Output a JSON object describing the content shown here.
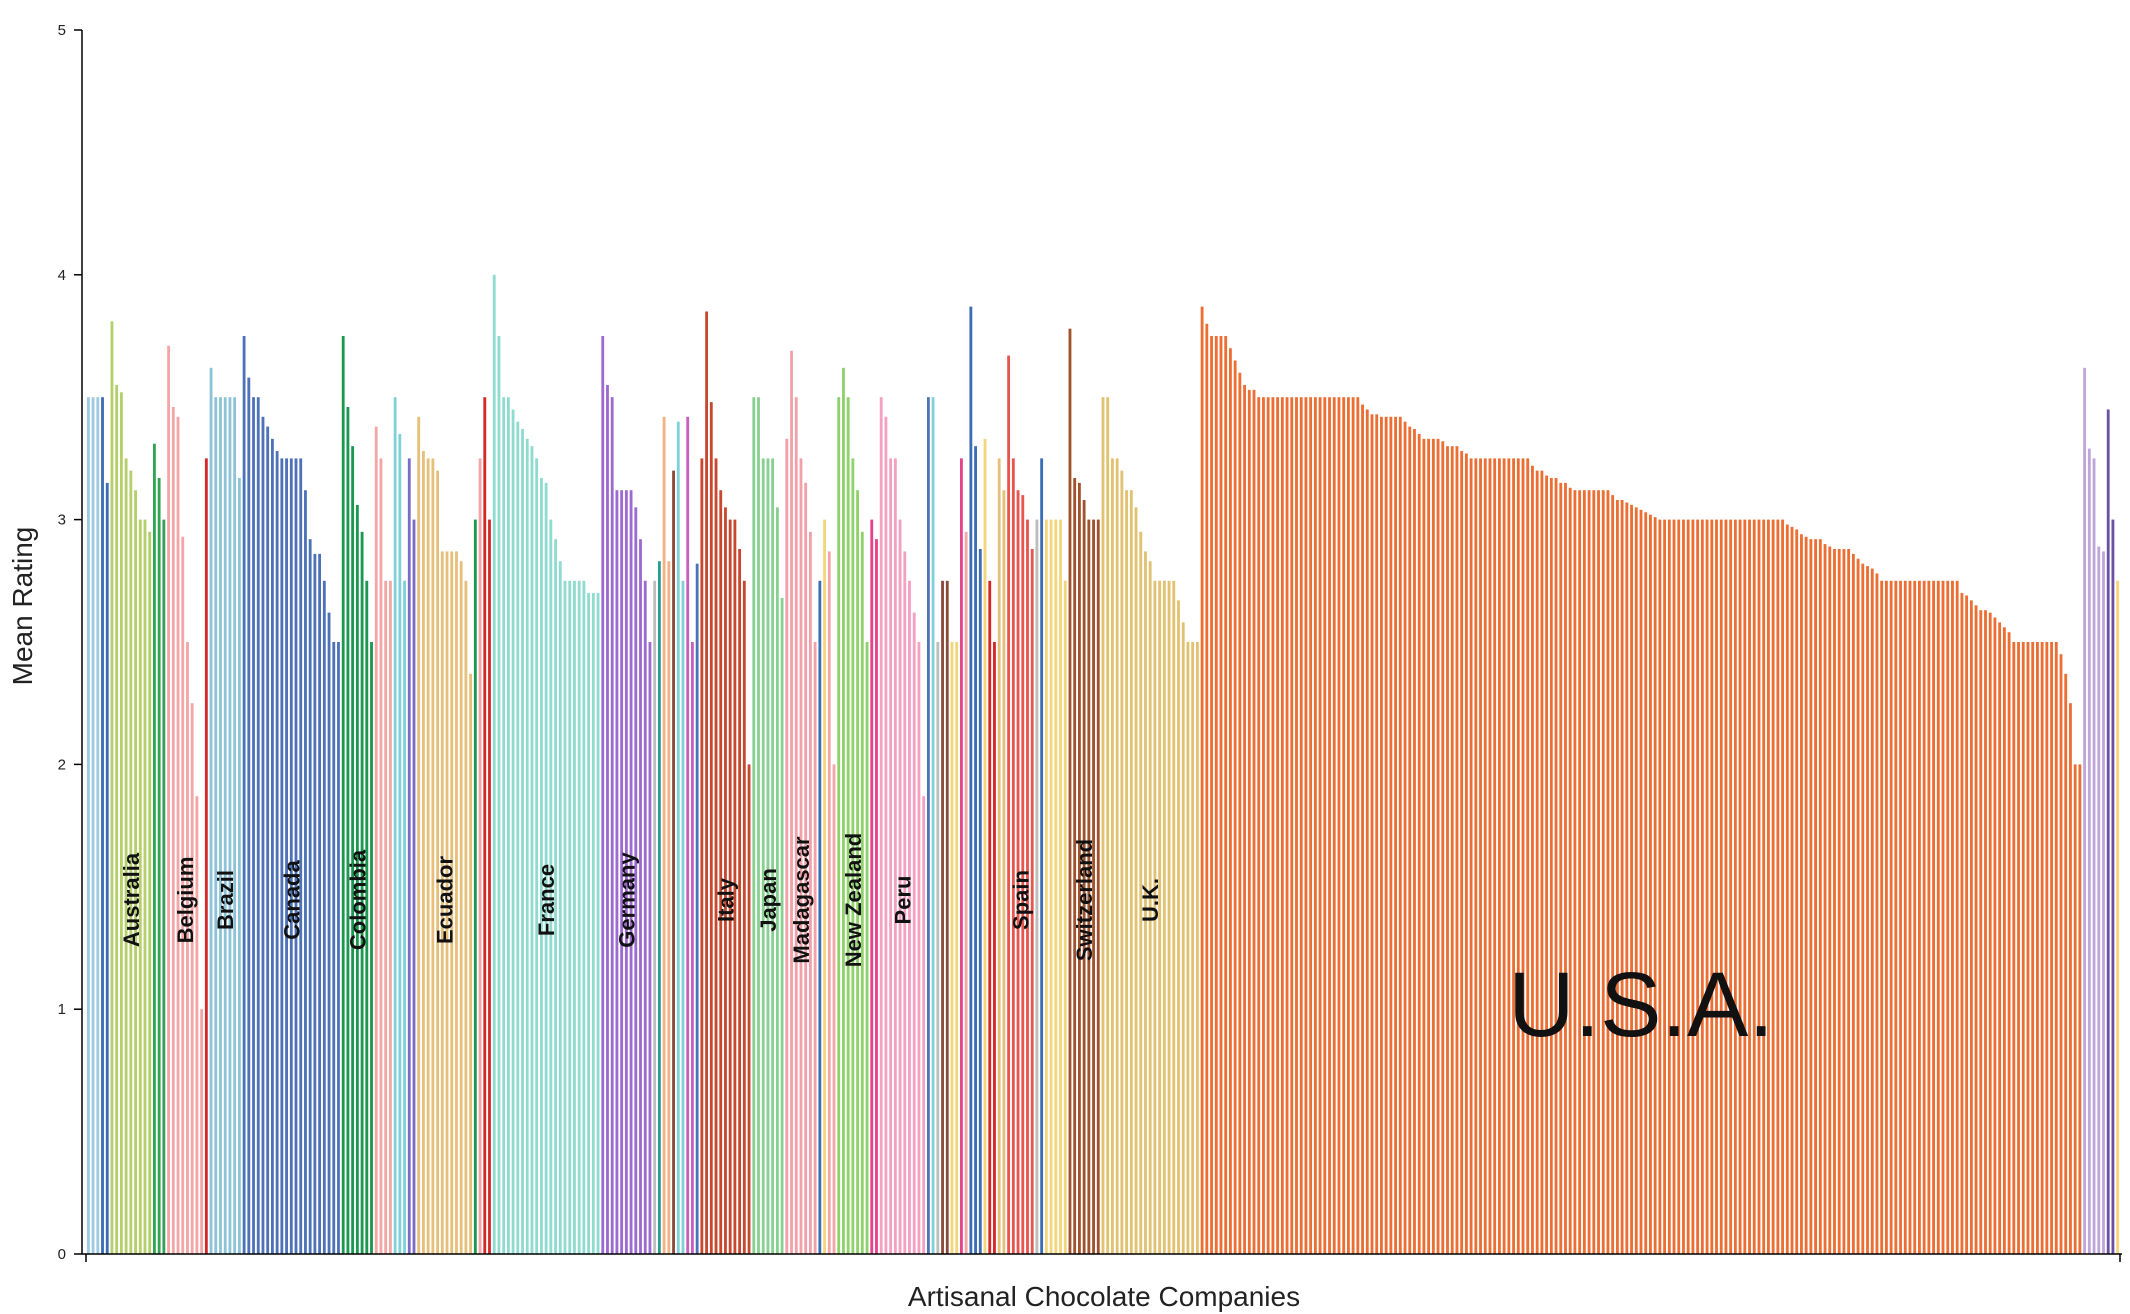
{
  "chart_data": {
    "type": "bar",
    "title": "",
    "xlabel": "Artisanal Chocolate Companies",
    "ylabel": "Mean Rating",
    "ylim": [
      0,
      5
    ],
    "yticks": [
      "0",
      "1",
      "2",
      "3",
      "4",
      "5"
    ],
    "grid": false,
    "legend": "none",
    "series": [
      {
        "country": "",
        "color": "#9ecae1",
        "values": [
          3.5,
          3.5,
          3.5
        ]
      },
      {
        "country": "",
        "color": "#3a6db5",
        "values": [
          3.5,
          3.15
        ]
      },
      {
        "country": "Australia",
        "color": "#b5cf6b",
        "values": [
          3.81,
          3.55,
          3.52,
          3.25,
          3.2,
          3.12,
          3.0,
          3.0,
          2.95
        ]
      },
      {
        "country": "",
        "color": "#31a354",
        "values": [
          3.31,
          3.17,
          3.0
        ]
      },
      {
        "country": "Belgium",
        "color": "#f4a5a5",
        "values": [
          3.71,
          3.46,
          3.42,
          2.93,
          2.5,
          2.25,
          1.87,
          1.0
        ]
      },
      {
        "country": "",
        "color": "#d62728",
        "values": [
          3.25
        ]
      },
      {
        "country": "Brazil",
        "color": "#8dc3d8",
        "values": [
          3.62,
          3.5,
          3.5,
          3.5,
          3.5,
          3.5,
          3.17
        ]
      },
      {
        "country": "Canada",
        "color": "#4e72b8",
        "values": [
          3.75,
          3.58,
          3.5,
          3.5,
          3.42,
          3.38,
          3.33,
          3.28,
          3.25,
          3.25,
          3.25,
          3.25,
          3.25,
          3.12,
          2.92,
          2.86,
          2.86,
          2.75,
          2.62,
          2.5,
          2.5
        ]
      },
      {
        "country": "Colombia",
        "color": "#1a9850",
        "values": [
          3.75,
          3.46,
          3.3,
          3.06,
          2.95,
          2.75,
          2.5
        ]
      },
      {
        "country": "",
        "color": "#f4a5a5",
        "values": [
          3.38,
          3.25,
          2.75,
          2.75
        ]
      },
      {
        "country": "",
        "color": "#7fd1d8",
        "values": [
          3.5,
          3.35,
          2.75
        ]
      },
      {
        "country": "",
        "color": "#7b6cc9",
        "values": [
          3.25,
          3.0
        ]
      },
      {
        "country": "Ecuador",
        "color": "#e6c07b",
        "values": [
          3.42,
          3.28,
          3.25,
          3.25,
          3.2,
          2.87,
          2.87,
          2.87,
          2.87,
          2.83,
          2.75,
          2.37
        ]
      },
      {
        "country": "",
        "color": "#1a9850",
        "values": [
          3.0
        ]
      },
      {
        "country": "",
        "color": "#f4a5a5",
        "values": [
          3.25
        ]
      },
      {
        "country": "",
        "color": "#d62728",
        "values": [
          3.5,
          3.0
        ]
      },
      {
        "country": "France",
        "color": "#8fdbd0",
        "values": [
          4.0,
          3.75,
          3.5,
          3.5,
          3.45,
          3.4,
          3.37,
          3.33,
          3.3,
          3.25,
          3.17,
          3.15,
          3.0,
          2.92,
          2.83,
          2.75,
          2.75,
          2.75,
          2.75,
          2.75,
          2.7,
          2.7,
          2.7
        ]
      },
      {
        "country": "Germany",
        "color": "#9c6ad0",
        "values": [
          3.75,
          3.55,
          3.5,
          3.12,
          3.12,
          3.12,
          3.12,
          3.05,
          2.92,
          2.75,
          2.5
        ]
      },
      {
        "country": "",
        "color": "#bdbdbd",
        "values": [
          2.75
        ]
      },
      {
        "country": "",
        "color": "#2a9d8f",
        "values": [
          2.83
        ]
      },
      {
        "country": "",
        "color": "#f4b183",
        "values": [
          3.42,
          2.83
        ]
      },
      {
        "country": "",
        "color": "#8c4a3a",
        "values": [
          3.2
        ]
      },
      {
        "country": "",
        "color": "#7fd1d8",
        "values": [
          3.4,
          2.75
        ]
      },
      {
        "country": "",
        "color": "#c85fbf",
        "values": [
          3.42,
          2.5
        ]
      },
      {
        "country": "",
        "color": "#4e72b8",
        "values": [
          2.82
        ]
      },
      {
        "country": "Italy",
        "color": "#c8482f",
        "values": [
          3.25,
          3.85,
          3.48,
          3.25,
          3.12,
          3.05,
          3.0,
          3.0,
          2.88,
          2.75,
          2.0
        ]
      },
      {
        "country": "Japan",
        "color": "#86d18f",
        "values": [
          3.5,
          3.5,
          3.25,
          3.25,
          3.25,
          3.05,
          2.68
        ]
      },
      {
        "country": "Madagascar",
        "color": "#f2a1a8",
        "values": [
          3.33,
          3.69,
          3.5,
          3.25,
          3.15,
          2.95,
          2.5
        ]
      },
      {
        "country": "",
        "color": "#3a6db5",
        "values": [
          2.75
        ]
      },
      {
        "country": "",
        "color": "#f4d67a",
        "values": [
          3.0
        ]
      },
      {
        "country": "",
        "color": "#f4a5a5",
        "values": [
          2.87,
          2.0
        ]
      },
      {
        "country": "New Zealand",
        "color": "#8fd16a",
        "values": [
          3.5,
          3.62,
          3.5,
          3.25,
          3.12,
          2.95,
          2.5
        ]
      },
      {
        "country": "",
        "color": "#e8408a",
        "values": [
          3.0,
          2.92
        ]
      },
      {
        "country": "Peru",
        "color": "#f4a0c0",
        "values": [
          3.5,
          3.42,
          3.25,
          3.25,
          3.0,
          2.87,
          2.75,
          2.62,
          2.5,
          1.87
        ]
      },
      {
        "country": "",
        "color": "#4e72b8",
        "values": [
          3.5
        ]
      },
      {
        "country": "",
        "color": "#7fd1d8",
        "values": [
          3.5
        ]
      },
      {
        "country": "",
        "color": "#bdbdbd",
        "values": [
          2.5
        ]
      },
      {
        "country": "",
        "color": "#8c4a3a",
        "values": [
          2.75,
          2.75
        ]
      },
      {
        "country": "",
        "color": "#f4d67a",
        "values": [
          2.5,
          2.5
        ]
      },
      {
        "country": "",
        "color": "#e8408a",
        "values": [
          3.25
        ]
      },
      {
        "country": "",
        "color": "#f4a5a5",
        "values": [
          2.95
        ]
      },
      {
        "country": "",
        "color": "#3a6db5",
        "values": [
          3.87,
          3.3,
          2.88
        ]
      },
      {
        "country": "",
        "color": "#f4d67a",
        "values": [
          3.33
        ]
      },
      {
        "country": "",
        "color": "#d62728",
        "values": [
          2.75,
          2.5
        ]
      },
      {
        "country": "",
        "color": "#e6c07b",
        "values": [
          3.25,
          3.12
        ]
      },
      {
        "country": "Spain",
        "color": "#e8554f",
        "values": [
          3.67,
          3.25,
          3.12,
          3.1,
          3.0,
          2.88
        ]
      },
      {
        "country": "",
        "color": "#bdbdbd",
        "values": [
          3.0
        ]
      },
      {
        "country": "",
        "color": "#3a6db5",
        "values": [
          3.25
        ]
      },
      {
        "country": "",
        "color": "#f4d67a",
        "values": [
          3.0,
          3.0,
          3.0,
          3.0,
          2.75
        ]
      },
      {
        "country": "Switzerland",
        "color": "#a0522d",
        "values": [
          3.78,
          3.17,
          3.15,
          3.08,
          3.0,
          3.0,
          3.0
        ]
      },
      {
        "country": "U.K.",
        "color": "#e2c170",
        "values": [
          3.5,
          3.5,
          3.25,
          3.25,
          3.2,
          3.12,
          3.12,
          3.05,
          2.95,
          2.87,
          2.83,
          2.75,
          2.75,
          2.75,
          2.75,
          2.75,
          2.67,
          2.58,
          2.5,
          2.5,
          2.5
        ]
      },
      {
        "country": "U.S.A.",
        "color": "#ec6e33",
        "values": [
          3.87,
          3.8,
          3.75,
          3.75,
          3.75,
          3.75,
          3.7,
          3.65,
          3.6,
          3.55,
          3.53,
          3.53,
          3.5,
          3.5,
          3.5,
          3.5,
          3.5,
          3.5,
          3.5,
          3.5,
          3.5,
          3.5,
          3.5,
          3.5,
          3.5,
          3.5,
          3.5,
          3.5,
          3.5,
          3.5,
          3.5,
          3.5,
          3.5,
          3.5,
          3.47,
          3.45,
          3.43,
          3.43,
          3.42,
          3.42,
          3.42,
          3.42,
          3.42,
          3.4,
          3.38,
          3.37,
          3.35,
          3.33,
          3.33,
          3.33,
          3.33,
          3.32,
          3.3,
          3.3,
          3.3,
          3.28,
          3.27,
          3.25,
          3.25,
          3.25,
          3.25,
          3.25,
          3.25,
          3.25,
          3.25,
          3.25,
          3.25,
          3.25,
          3.25,
          3.25,
          3.22,
          3.2,
          3.2,
          3.18,
          3.17,
          3.17,
          3.15,
          3.15,
          3.13,
          3.12,
          3.12,
          3.12,
          3.12,
          3.12,
          3.12,
          3.12,
          3.12,
          3.1,
          3.08,
          3.08,
          3.07,
          3.06,
          3.05,
          3.04,
          3.03,
          3.02,
          3.01,
          3.0,
          3.0,
          3.0,
          3.0,
          3.0,
          3.0,
          3.0,
          3.0,
          3.0,
          3.0,
          3.0,
          3.0,
          3.0,
          3.0,
          3.0,
          3.0,
          3.0,
          3.0,
          3.0,
          3.0,
          3.0,
          3.0,
          3.0,
          3.0,
          3.0,
          3.0,
          3.0,
          2.98,
          2.97,
          2.96,
          2.94,
          2.93,
          2.92,
          2.92,
          2.92,
          2.9,
          2.89,
          2.88,
          2.88,
          2.88,
          2.88,
          2.86,
          2.84,
          2.82,
          2.81,
          2.8,
          2.78,
          2.75,
          2.75,
          2.75,
          2.75,
          2.75,
          2.75,
          2.75,
          2.75,
          2.75,
          2.75,
          2.75,
          2.75,
          2.75,
          2.75,
          2.75,
          2.75,
          2.75,
          2.7,
          2.69,
          2.67,
          2.65,
          2.63,
          2.63,
          2.62,
          2.6,
          2.58,
          2.56,
          2.54,
          2.5,
          2.5,
          2.5,
          2.5,
          2.5,
          2.5,
          2.5,
          2.5,
          2.5,
          2.5,
          2.45,
          2.37,
          2.25,
          2.0,
          2.0
        ]
      },
      {
        "country": "",
        "color": "#bfa5d8",
        "values": [
          3.62,
          3.29,
          3.25,
          2.89,
          2.87
        ]
      },
      {
        "country": "",
        "color": "#6a51a3",
        "values": [
          3.45,
          3.0
        ]
      },
      {
        "country": "",
        "color": "#f4d67a",
        "values": [
          2.75
        ]
      }
    ]
  }
}
